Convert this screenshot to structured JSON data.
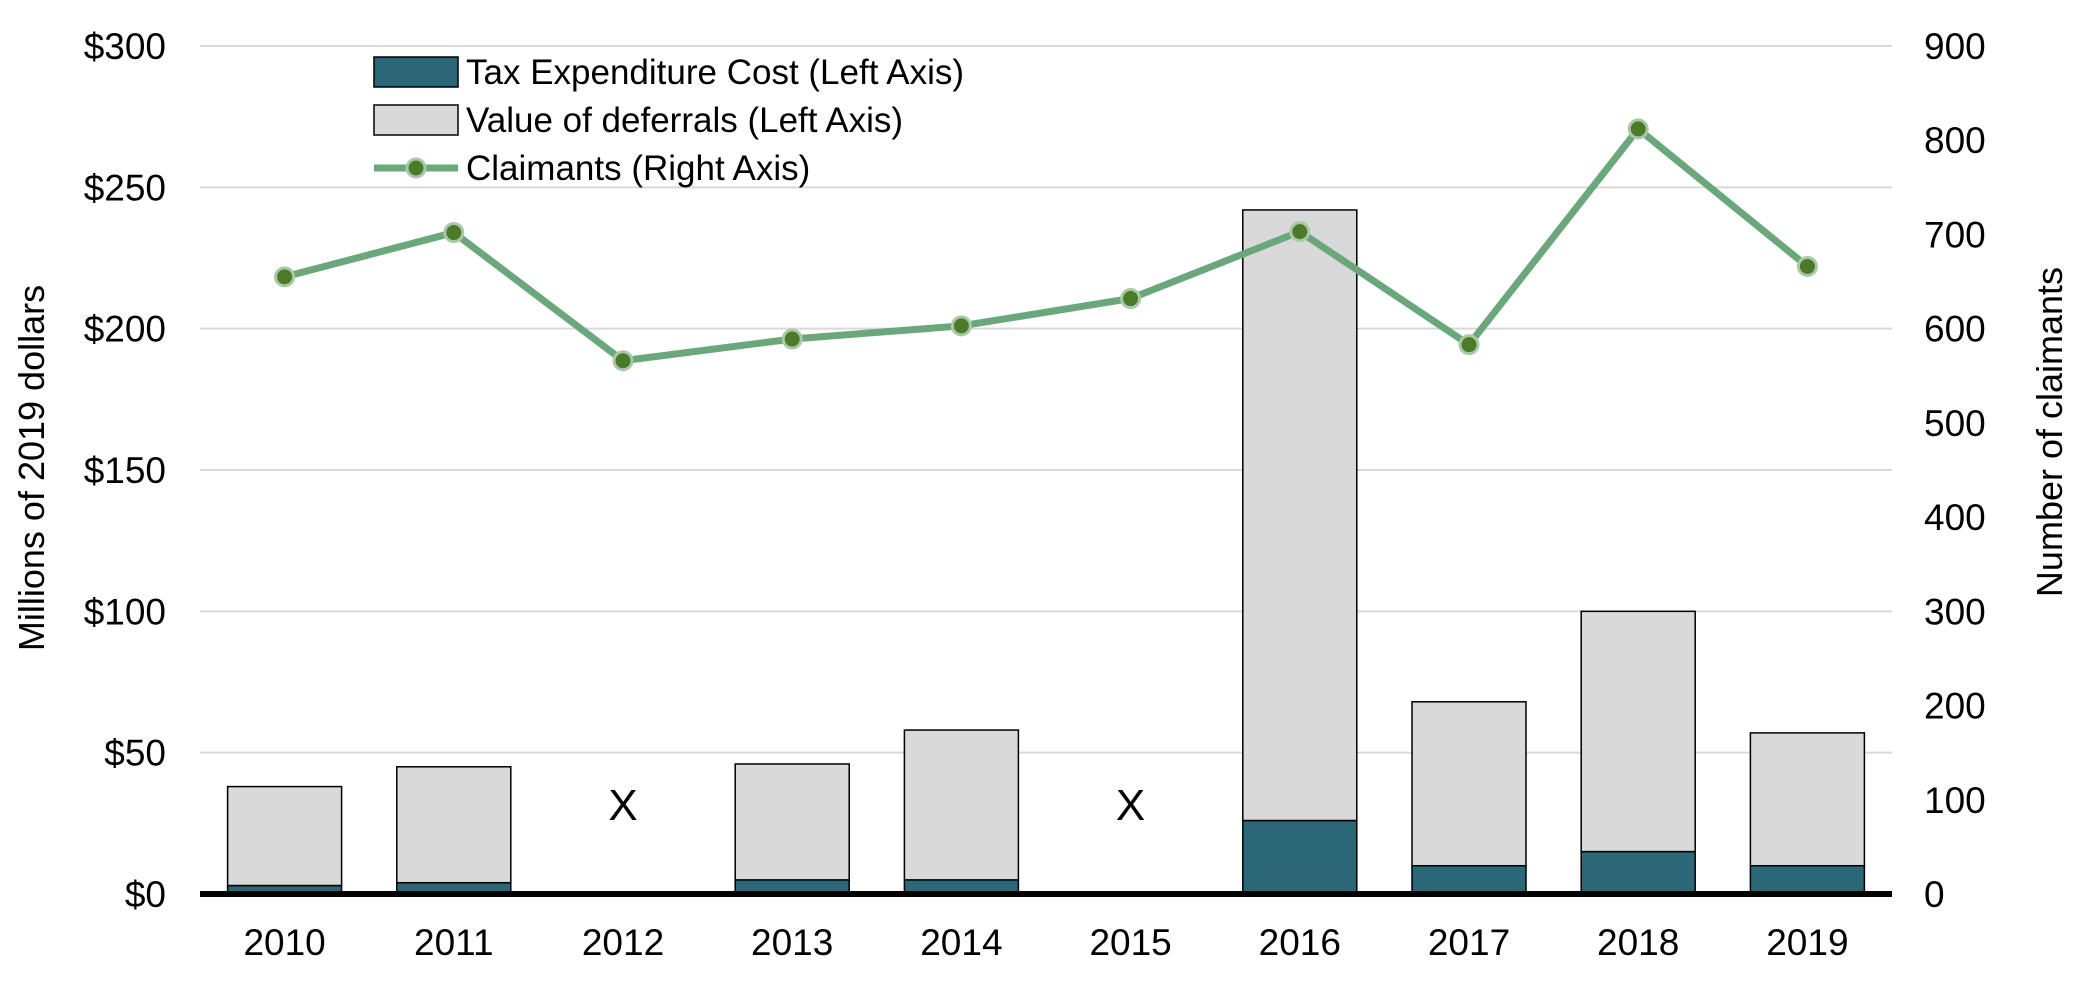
{
  "chart_data": {
    "type": "bar",
    "stacked": true,
    "categories": [
      "2010",
      "2011",
      "2012",
      "2013",
      "2014",
      "2015",
      "2016",
      "2017",
      "2018",
      "2019"
    ],
    "series": [
      {
        "name": "Tax Expenditure Cost (Left Axis)",
        "type": "bar",
        "axis": "left",
        "color": "#2a6878",
        "values": [
          3,
          4,
          null,
          5,
          5,
          null,
          26,
          10,
          15,
          10
        ]
      },
      {
        "name": "Value of deferrals (Left Axis)",
        "type": "bar",
        "axis": "left",
        "color": "#d9d9d9",
        "values": [
          35,
          41,
          null,
          41,
          53,
          null,
          216,
          58,
          85,
          47
        ]
      },
      {
        "name": "Claimants (Right Axis)",
        "type": "line",
        "axis": "right",
        "color": "#6aa87c",
        "marker_color": "#4b7a29",
        "values": [
          655,
          702,
          566,
          589,
          603,
          632,
          703,
          583,
          812,
          666
        ]
      }
    ],
    "suppressed_label": "X",
    "suppressed_categories": [
      "2012",
      "2015"
    ],
    "left_axis": {
      "label": "Millions of 2019 dollars",
      "ylim": [
        0,
        300
      ],
      "ticks": [
        0,
        50,
        100,
        150,
        200,
        250,
        300
      ],
      "tick_labels": [
        "$0",
        "$50",
        "$100",
        "$150",
        "$200",
        "$250",
        "$300"
      ]
    },
    "right_axis": {
      "label": "Number of claimants",
      "ylim": [
        0,
        900
      ],
      "ticks": [
        0,
        100,
        200,
        300,
        400,
        500,
        600,
        700,
        800,
        900
      ],
      "tick_labels": [
        "0",
        "100",
        "200",
        "300",
        "400",
        "500",
        "600",
        "700",
        "800",
        "900"
      ]
    },
    "grid": true,
    "legend_position": "top-left",
    "xlabel": ""
  }
}
